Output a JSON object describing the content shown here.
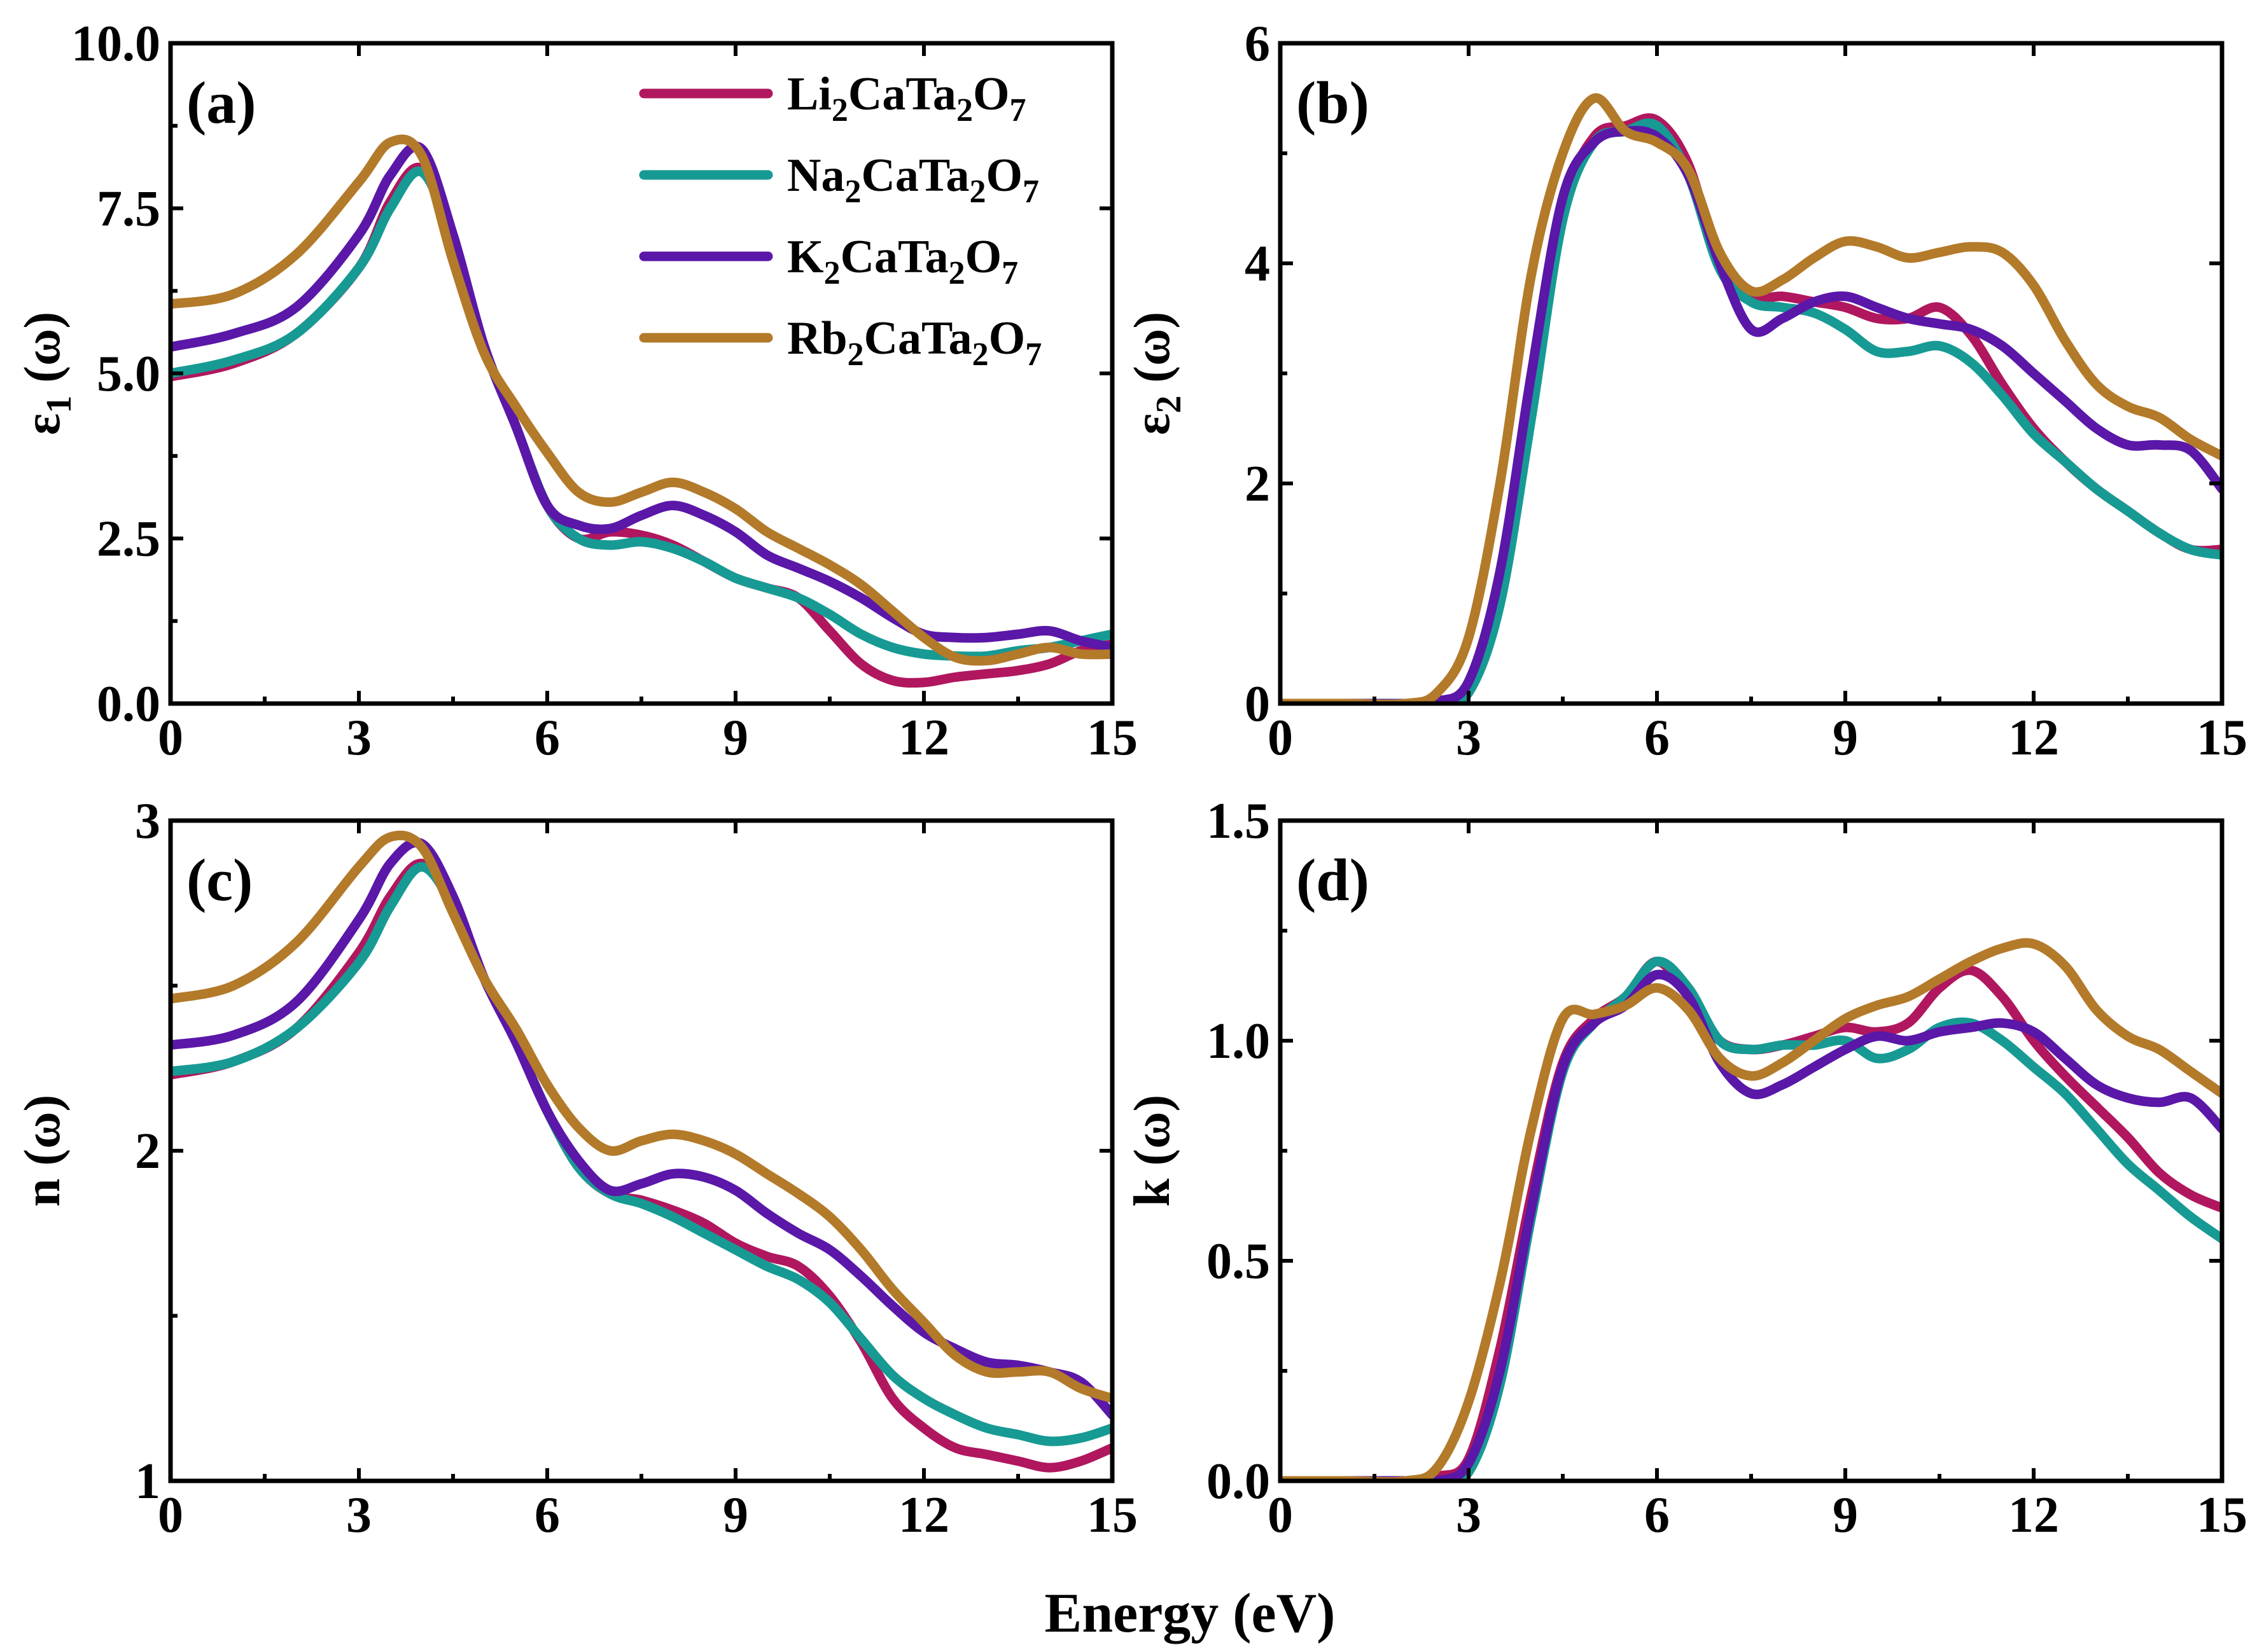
{
  "figure": {
    "xlabel": "Energy (eV)"
  },
  "legend": [
    {
      "base": "Li",
      "s1": "2",
      "mid": "CaTa",
      "s2": "2",
      "end": "O",
      "s3": "7",
      "color": "#b0175e"
    },
    {
      "base": "Na",
      "s1": "2",
      "mid": "CaTa",
      "s2": "2",
      "end": "O",
      "s3": "7",
      "color": "#179a94"
    },
    {
      "base": "K",
      "s1": "2",
      "mid": "CaTa",
      "s2": "2",
      "end": "O",
      "s3": "7",
      "color": "#5a17a8"
    },
    {
      "base": "Rb",
      "s1": "2",
      "mid": "CaTa",
      "s2": "2",
      "end": "O",
      "s3": "7",
      "color": "#b37a2a"
    }
  ],
  "chart_data": [
    {
      "id": "a",
      "type": "line",
      "panel_label": "(a)",
      "ylabel": {
        "main": "ε",
        "sub": "1",
        "rest": " (ω)"
      },
      "xlim": [
        0,
        15
      ],
      "ylim": [
        0,
        10
      ],
      "xticks": [
        "0",
        "3",
        "6",
        "9",
        "12",
        "15"
      ],
      "yticks": [
        "0.0",
        "2.5",
        "5.0",
        "7.5",
        "10.0"
      ],
      "ytick_values": [
        0,
        2.5,
        5,
        7.5,
        10
      ],
      "x": [
        0,
        1,
        2,
        3,
        3.5,
        4,
        4.5,
        5,
        5.5,
        6,
        6.5,
        7,
        7.5,
        8,
        8.5,
        9,
        9.5,
        10,
        10.5,
        11,
        11.5,
        12,
        12.5,
        13,
        13.5,
        14,
        14.5,
        15
      ],
      "series": [
        {
          "name": "Li2CaTa2O7",
          "color": "#b0175e",
          "values": [
            4.95,
            5.15,
            5.6,
            6.6,
            7.6,
            8.1,
            7.0,
            5.4,
            4.2,
            3.0,
            2.5,
            2.6,
            2.55,
            2.4,
            2.15,
            1.9,
            1.75,
            1.6,
            1.1,
            0.6,
            0.35,
            0.32,
            0.4,
            0.45,
            0.5,
            0.6,
            0.8,
            0.9
          ]
        },
        {
          "name": "Na2CaTa2O7",
          "color": "#179a94",
          "values": [
            5.0,
            5.2,
            5.6,
            6.6,
            7.5,
            8.05,
            7.0,
            5.4,
            4.2,
            3.0,
            2.5,
            2.4,
            2.45,
            2.35,
            2.15,
            1.9,
            1.75,
            1.6,
            1.35,
            1.05,
            0.85,
            0.75,
            0.72,
            0.72,
            0.8,
            0.85,
            0.95,
            1.05
          ]
        },
        {
          "name": "K2CaTa2O7",
          "color": "#5a17a8",
          "values": [
            5.4,
            5.6,
            6.0,
            7.1,
            8.0,
            8.4,
            7.1,
            5.4,
            4.2,
            3.0,
            2.7,
            2.65,
            2.85,
            3.0,
            2.85,
            2.6,
            2.25,
            2.05,
            1.85,
            1.6,
            1.3,
            1.05,
            1.0,
            1.0,
            1.05,
            1.1,
            0.95,
            0.85
          ]
        },
        {
          "name": "Rb2CaTa2O7",
          "color": "#b37a2a",
          "values": [
            6.05,
            6.2,
            6.8,
            7.9,
            8.5,
            8.3,
            6.7,
            5.3,
            4.5,
            3.8,
            3.2,
            3.05,
            3.2,
            3.35,
            3.2,
            2.95,
            2.6,
            2.35,
            2.1,
            1.8,
            1.4,
            1.0,
            0.7,
            0.65,
            0.75,
            0.85,
            0.75,
            0.75
          ]
        }
      ]
    },
    {
      "id": "b",
      "type": "line",
      "panel_label": "(b)",
      "ylabel": {
        "main": "ε",
        "sub": "2",
        "rest": " (ω)"
      },
      "xlim": [
        0,
        15
      ],
      "ylim": [
        0,
        6
      ],
      "xticks": [
        "0",
        "3",
        "6",
        "9",
        "12",
        "15"
      ],
      "yticks": [
        "0",
        "2",
        "4",
        "6"
      ],
      "ytick_values": [
        0,
        2,
        4,
        6
      ],
      "x": [
        0,
        1,
        2,
        2.5,
        3,
        3.5,
        4,
        4.5,
        5,
        5.5,
        6,
        6.5,
        7,
        7.5,
        8,
        8.5,
        9,
        9.5,
        10,
        10.5,
        11,
        11.5,
        12,
        12.5,
        13,
        13.5,
        14,
        14.5,
        15
      ],
      "series": [
        {
          "name": "Li2CaTa2O7",
          "color": "#b0175e",
          "values": [
            0,
            0,
            0,
            0.02,
            0.15,
            1.0,
            2.8,
            4.5,
            5.15,
            5.25,
            5.3,
            4.9,
            4.0,
            3.7,
            3.7,
            3.65,
            3.6,
            3.5,
            3.5,
            3.6,
            3.35,
            2.9,
            2.5,
            2.2,
            1.95,
            1.75,
            1.55,
            1.4,
            1.4
          ]
        },
        {
          "name": "Na2CaTa2O7",
          "color": "#179a94",
          "values": [
            0,
            0,
            0,
            0.01,
            0.1,
            0.9,
            2.6,
            4.4,
            5.1,
            5.2,
            5.25,
            4.8,
            3.95,
            3.65,
            3.6,
            3.55,
            3.4,
            3.2,
            3.2,
            3.25,
            3.1,
            2.8,
            2.45,
            2.2,
            1.95,
            1.75,
            1.55,
            1.4,
            1.35
          ]
        },
        {
          "name": "K2CaTa2O7",
          "color": "#5a17a8",
          "values": [
            0,
            0,
            0,
            0.02,
            0.2,
            1.2,
            3.0,
            4.6,
            5.1,
            5.2,
            5.15,
            4.8,
            4.0,
            3.4,
            3.5,
            3.65,
            3.7,
            3.6,
            3.5,
            3.45,
            3.4,
            3.25,
            3.0,
            2.75,
            2.5,
            2.35,
            2.35,
            2.3,
            1.95
          ]
        },
        {
          "name": "Rb2CaTa2O7",
          "color": "#b37a2a",
          "values": [
            0,
            0,
            0,
            0.1,
            0.6,
            2.0,
            3.9,
            5.0,
            5.5,
            5.2,
            5.1,
            4.85,
            4.1,
            3.75,
            3.85,
            4.05,
            4.2,
            4.15,
            4.05,
            4.1,
            4.15,
            4.1,
            3.8,
            3.3,
            2.9,
            2.7,
            2.6,
            2.4,
            2.25
          ]
        }
      ]
    },
    {
      "id": "c",
      "type": "line",
      "panel_label": "(c)",
      "ylabel": {
        "main": "n",
        "sub": "",
        "rest": " (ω)"
      },
      "xlim": [
        0,
        15
      ],
      "ylim": [
        1,
        3
      ],
      "xticks": [
        "0",
        "3",
        "6",
        "9",
        "12",
        "15"
      ],
      "yticks": [
        "1",
        "2",
        "3"
      ],
      "ytick_values": [
        1,
        2,
        3
      ],
      "x": [
        0,
        1,
        2,
        3,
        3.5,
        4,
        4.5,
        5,
        5.5,
        6,
        6.5,
        7,
        7.5,
        8,
        8.5,
        9,
        9.5,
        10,
        10.5,
        11,
        11.5,
        12,
        12.5,
        13,
        13.5,
        14,
        14.5,
        15
      ],
      "series": [
        {
          "name": "Li2CaTa2O7",
          "color": "#b0175e",
          "values": [
            2.23,
            2.27,
            2.37,
            2.6,
            2.77,
            2.87,
            2.75,
            2.52,
            2.33,
            2.12,
            1.95,
            1.87,
            1.85,
            1.82,
            1.78,
            1.72,
            1.68,
            1.65,
            1.56,
            1.42,
            1.25,
            1.16,
            1.1,
            1.08,
            1.06,
            1.04,
            1.06,
            1.1
          ]
        },
        {
          "name": "Na2CaTa2O7",
          "color": "#179a94",
          "values": [
            2.24,
            2.27,
            2.37,
            2.57,
            2.74,
            2.86,
            2.74,
            2.52,
            2.33,
            2.12,
            1.95,
            1.87,
            1.84,
            1.8,
            1.75,
            1.7,
            1.65,
            1.61,
            1.54,
            1.43,
            1.32,
            1.25,
            1.2,
            1.16,
            1.14,
            1.12,
            1.13,
            1.16
          ]
        },
        {
          "name": "K2CaTa2O7",
          "color": "#5a17a8",
          "values": [
            2.32,
            2.35,
            2.45,
            2.7,
            2.87,
            2.93,
            2.77,
            2.52,
            2.33,
            2.12,
            1.97,
            1.88,
            1.9,
            1.93,
            1.92,
            1.88,
            1.81,
            1.75,
            1.7,
            1.62,
            1.53,
            1.45,
            1.4,
            1.36,
            1.35,
            1.33,
            1.3,
            1.2
          ]
        },
        {
          "name": "Rb2CaTa2O7",
          "color": "#b37a2a",
          "values": [
            2.46,
            2.5,
            2.63,
            2.86,
            2.95,
            2.92,
            2.72,
            2.52,
            2.37,
            2.2,
            2.07,
            2.0,
            2.03,
            2.05,
            2.03,
            1.99,
            1.93,
            1.87,
            1.8,
            1.7,
            1.58,
            1.48,
            1.38,
            1.33,
            1.33,
            1.33,
            1.28,
            1.25
          ]
        }
      ]
    },
    {
      "id": "d",
      "type": "line",
      "panel_label": "(d)",
      "ylabel": {
        "main": "k",
        "sub": "",
        "rest": " (ω)"
      },
      "xlim": [
        0,
        15
      ],
      "ylim": [
        0,
        1.5
      ],
      "xticks": [
        "0",
        "3",
        "6",
        "9",
        "12",
        "15"
      ],
      "yticks": [
        "0.0",
        "0.5",
        "1.0",
        "1.5"
      ],
      "ytick_values": [
        0,
        0.5,
        1.0,
        1.5
      ],
      "x": [
        0,
        1,
        2,
        2.5,
        3,
        3.5,
        4,
        4.5,
        5,
        5.5,
        6,
        6.5,
        7,
        7.5,
        8,
        8.5,
        9,
        9.5,
        10,
        10.5,
        11,
        11.5,
        12,
        12.5,
        13,
        13.5,
        14,
        14.5,
        15
      ],
      "series": [
        {
          "name": "Li2CaTa2O7",
          "color": "#b0175e",
          "values": [
            0,
            0,
            0,
            0.01,
            0.05,
            0.3,
            0.65,
            0.95,
            1.05,
            1.1,
            1.18,
            1.1,
            1.0,
            0.98,
            0.99,
            1.01,
            1.03,
            1.02,
            1.04,
            1.12,
            1.16,
            1.1,
            1.0,
            0.92,
            0.85,
            0.78,
            0.7,
            0.65,
            0.62
          ]
        },
        {
          "name": "Na2CaTa2O7",
          "color": "#179a94",
          "values": [
            0,
            0,
            0,
            0.0,
            0.02,
            0.22,
            0.6,
            0.93,
            1.04,
            1.1,
            1.18,
            1.12,
            1.0,
            0.98,
            0.99,
            0.99,
            1.0,
            0.96,
            0.98,
            1.03,
            1.04,
            1.0,
            0.94,
            0.88,
            0.8,
            0.72,
            0.66,
            0.6,
            0.55
          ]
        },
        {
          "name": "K2CaTa2O7",
          "color": "#5a17a8",
          "values": [
            0,
            0,
            0,
            0.0,
            0.04,
            0.25,
            0.62,
            0.94,
            1.04,
            1.08,
            1.15,
            1.1,
            0.95,
            0.88,
            0.9,
            0.94,
            0.98,
            1.01,
            1.0,
            1.02,
            1.03,
            1.04,
            1.02,
            0.96,
            0.9,
            0.87,
            0.86,
            0.87,
            0.8
          ]
        },
        {
          "name": "Rb2CaTa2O7",
          "color": "#b37a2a",
          "values": [
            0,
            0,
            0,
            0.03,
            0.18,
            0.45,
            0.8,
            1.05,
            1.06,
            1.08,
            1.12,
            1.07,
            0.96,
            0.92,
            0.95,
            1.0,
            1.05,
            1.08,
            1.1,
            1.14,
            1.18,
            1.21,
            1.22,
            1.17,
            1.07,
            1.01,
            0.98,
            0.93,
            0.88
          ]
        }
      ]
    }
  ]
}
